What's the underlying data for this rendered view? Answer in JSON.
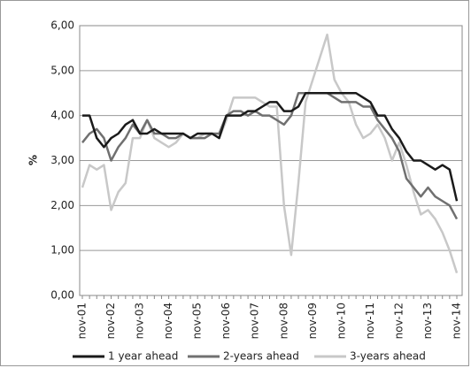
{
  "chart_data": {
    "type": "line",
    "ylabel": "%",
    "categories": [
      "nov-01",
      null,
      null,
      null,
      "nov-02",
      null,
      null,
      null,
      "nov-03",
      null,
      null,
      null,
      "nov-04",
      null,
      null,
      null,
      "nov-05",
      null,
      null,
      null,
      "nov-06",
      null,
      null,
      null,
      "nov-07",
      null,
      null,
      null,
      "nov-08",
      null,
      null,
      null,
      "nov-09",
      null,
      null,
      null,
      "nov-10",
      null,
      null,
      null,
      "nov-11",
      null,
      null,
      null,
      "nov-12",
      null,
      null,
      null,
      "nov-13",
      null,
      null,
      null,
      "nov-14"
    ],
    "series": [
      {
        "name": "1 year ahead",
        "color": "#1a1a1a",
        "values": [
          4.0,
          4.0,
          3.5,
          3.3,
          3.5,
          3.6,
          3.8,
          3.9,
          3.6,
          3.6,
          3.7,
          3.6,
          3.6,
          3.6,
          3.6,
          3.5,
          3.6,
          3.6,
          3.6,
          3.5,
          4.0,
          4.0,
          4.0,
          4.1,
          4.1,
          4.2,
          4.3,
          4.3,
          4.1,
          4.1,
          4.2,
          4.5,
          4.5,
          4.5,
          4.5,
          4.5,
          4.5,
          4.5,
          4.5,
          4.4,
          4.3,
          4.0,
          4.0,
          3.7,
          3.5,
          3.2,
          3.0,
          3.0,
          2.9,
          2.8,
          2.9,
          2.8,
          2.1
        ]
      },
      {
        "name": "2-years ahead",
        "color": "#707070",
        "values": [
          3.4,
          3.6,
          3.7,
          3.5,
          3.0,
          3.3,
          3.5,
          3.8,
          3.6,
          3.9,
          3.6,
          3.6,
          3.5,
          3.5,
          3.6,
          3.5,
          3.5,
          3.5,
          3.6,
          3.6,
          4.0,
          4.1,
          4.1,
          4.0,
          4.1,
          4.0,
          4.0,
          3.9,
          3.8,
          4.0,
          4.5,
          4.5,
          4.5,
          4.5,
          4.5,
          4.4,
          4.3,
          4.3,
          4.3,
          4.2,
          4.2,
          3.9,
          3.7,
          3.5,
          3.2,
          2.6,
          2.4,
          2.2,
          2.4,
          2.2,
          2.1,
          2.0,
          1.7
        ]
      },
      {
        "name": "3-years ahead",
        "color": "#c8c8c8",
        "values": [
          2.4,
          2.9,
          2.8,
          2.9,
          1.9,
          2.3,
          2.5,
          3.5,
          3.5,
          3.9,
          3.5,
          3.4,
          3.3,
          3.4,
          3.6,
          3.5,
          3.5,
          3.6,
          3.6,
          3.5,
          3.9,
          4.4,
          4.4,
          4.4,
          4.4,
          4.3,
          4.2,
          4.2,
          2.0,
          0.9,
          2.5,
          4.3,
          4.8,
          5.3,
          5.8,
          4.8,
          4.5,
          4.3,
          3.8,
          3.5,
          3.6,
          3.8,
          3.5,
          3.0,
          3.4,
          2.9,
          2.3,
          1.8,
          1.9,
          1.7,
          1.4,
          1.0,
          0.5
        ]
      }
    ],
    "ylim": [
      0,
      6
    ],
    "yticks": [
      {
        "value": 0,
        "label": "0,00"
      },
      {
        "value": 1,
        "label": "1,00"
      },
      {
        "value": 2,
        "label": "2,00"
      },
      {
        "value": 3,
        "label": "3,00"
      },
      {
        "value": 4,
        "label": "4,00"
      },
      {
        "value": 5,
        "label": "5,00"
      },
      {
        "value": 6,
        "label": "6,00"
      }
    ],
    "grid": true,
    "legend": "bottom"
  }
}
